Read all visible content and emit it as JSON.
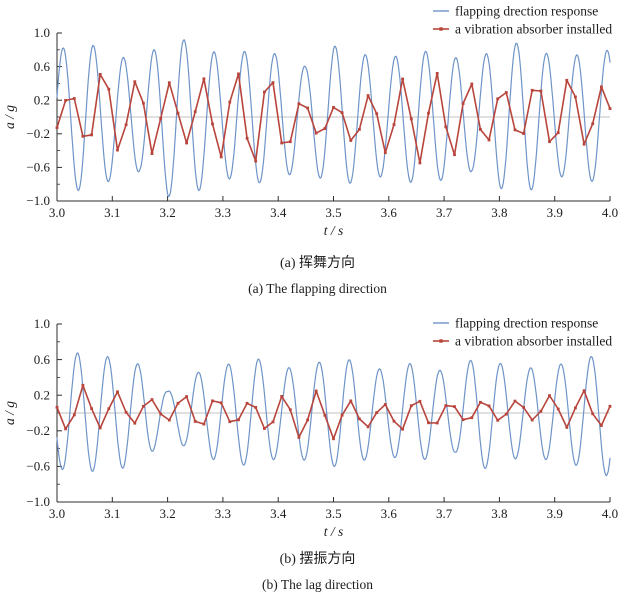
{
  "figure_captions": {
    "a_zh": "(a) 挥舞方向",
    "a_en": "(a) The flapping direction",
    "b_zh": "(b) 摆振方向",
    "b_en": "(b) The lag direction"
  },
  "colors": {
    "response_line": "#6E94C8",
    "absorber_line": "#B8453C",
    "axis": "#2E2E2E",
    "zero_line": "#AEAEAE",
    "text": "#1C1C1C"
  },
  "chart_data": [
    {
      "type": "line",
      "panel": "a",
      "title_zh": "(a) 挥舞方向",
      "title_en": "(a) The flapping direction",
      "xlabel": "t / s",
      "ylabel": "a / g",
      "xlim": [
        3.0,
        4.0
      ],
      "ylim": [
        -1.0,
        1.0
      ],
      "grid": false,
      "zero_line": true,
      "legend_position": "top-right",
      "x_ticks": [
        {
          "value": 3.0,
          "label": "3.0"
        },
        {
          "value": 3.1,
          "label": "3.1"
        },
        {
          "value": 3.2,
          "label": "3.2"
        },
        {
          "value": 3.3,
          "label": "3.3"
        },
        {
          "value": 3.4,
          "label": "3.4"
        },
        {
          "value": 3.5,
          "label": "3.5"
        },
        {
          "value": 3.6,
          "label": "3.6"
        },
        {
          "value": 3.7,
          "label": "3.7"
        },
        {
          "value": 3.8,
          "label": "3.8"
        },
        {
          "value": 3.9,
          "label": "3.9"
        },
        {
          "value": 4.0,
          "label": "4.0"
        }
      ],
      "y_ticks": [
        {
          "value": 1.0,
          "label": "1.0"
        },
        {
          "value": 0.6,
          "label": "0.6"
        },
        {
          "value": 0.2,
          "label": "0.2"
        },
        {
          "value": -0.2,
          "label": "−0.2"
        },
        {
          "value": -0.6,
          "label": "−0.6"
        },
        {
          "value": -1.0,
          "label": "−1.0"
        }
      ],
      "y_minor_tick_step": 0.2,
      "series": [
        {
          "name": "flapping drection response",
          "color": "#6E94C8",
          "marker": "none",
          "line_width": 1.2,
          "waveform": {
            "freq_hz": 18.3,
            "phase_rad": 0.3,
            "sample_rate_hz": 600,
            "amp_envelope": [
              [
                3.0,
                0.8
              ],
              [
                3.05,
                0.9
              ],
              [
                3.1,
                0.75
              ],
              [
                3.15,
                0.65
              ],
              [
                3.2,
                0.95
              ],
              [
                3.25,
                0.9
              ],
              [
                3.3,
                0.72
              ],
              [
                3.35,
                0.8
              ],
              [
                3.4,
                0.75
              ],
              [
                3.45,
                0.6
              ],
              [
                3.5,
                0.85
              ],
              [
                3.55,
                0.75
              ],
              [
                3.6,
                0.7
              ],
              [
                3.65,
                0.8
              ],
              [
                3.7,
                0.75
              ],
              [
                3.75,
                0.65
              ],
              [
                3.8,
                0.85
              ],
              [
                3.85,
                0.9
              ],
              [
                3.9,
                0.7
              ],
              [
                3.95,
                0.75
              ],
              [
                4.0,
                0.8
              ]
            ]
          }
        },
        {
          "name": "a vibration absorber installed",
          "color": "#B8453C",
          "marker": "square",
          "marker_size": 2.8,
          "line_width": 1.6,
          "waveform": {
            "freq_hz": 16.6,
            "phase_rad": -0.85,
            "sample_rate_hz": 64,
            "amp_envelope": [
              [
                3.0,
                0.2
              ],
              [
                3.04,
                0.3
              ],
              [
                3.09,
                0.62
              ],
              [
                3.13,
                0.35
              ],
              [
                3.17,
                0.5
              ],
              [
                3.22,
                0.3
              ],
              [
                3.27,
                0.45
              ],
              [
                3.32,
                0.55
              ],
              [
                3.38,
                0.6
              ],
              [
                3.43,
                0.3
              ],
              [
                3.48,
                0.15
              ],
              [
                3.53,
                0.25
              ],
              [
                3.58,
                0.35
              ],
              [
                3.63,
                0.5
              ],
              [
                3.68,
                0.55
              ],
              [
                3.73,
                0.45
              ],
              [
                3.78,
                0.35
              ],
              [
                3.83,
                0.3
              ],
              [
                3.88,
                0.42
              ],
              [
                3.93,
                0.45
              ],
              [
                4.0,
                0.3
              ]
            ],
            "drift": {
              "amp": 0.05,
              "freq_hz": 1.3,
              "phase_rad": 0.5
            }
          }
        }
      ]
    },
    {
      "type": "line",
      "panel": "b",
      "title_zh": "(b) 摆振方向",
      "title_en": "(b) The lag direction",
      "xlabel": "t / s",
      "ylabel": "a / g",
      "xlim": [
        3.0,
        4.0
      ],
      "ylim": [
        -1.0,
        1.0
      ],
      "grid": false,
      "zero_line": true,
      "legend_position": "top-right",
      "x_ticks": [
        {
          "value": 3.0,
          "label": "3.0"
        },
        {
          "value": 3.1,
          "label": "3.1"
        },
        {
          "value": 3.2,
          "label": "3.2"
        },
        {
          "value": 3.3,
          "label": "3.3"
        },
        {
          "value": 3.4,
          "label": "3.4"
        },
        {
          "value": 3.5,
          "label": "3.5"
        },
        {
          "value": 3.6,
          "label": "3.6"
        },
        {
          "value": 3.7,
          "label": "3.7"
        },
        {
          "value": 3.8,
          "label": "3.8"
        },
        {
          "value": 3.9,
          "label": "3.9"
        },
        {
          "value": 4.0,
          "label": "4.0"
        }
      ],
      "y_ticks": [
        {
          "value": 1.0,
          "label": "1.0"
        },
        {
          "value": 0.6,
          "label": "0.6"
        },
        {
          "value": 0.2,
          "label": "0.2"
        },
        {
          "value": -0.2,
          "label": "−0.2"
        },
        {
          "value": -0.6,
          "label": "−0.6"
        },
        {
          "value": -1.0,
          "label": "−1.0"
        }
      ],
      "y_minor_tick_step": 0.2,
      "series": [
        {
          "name": "flapping drection response",
          "color": "#6E94C8",
          "marker": "none",
          "line_width": 1.2,
          "waveform": {
            "freq_hz": 18.3,
            "phase_rad": 3.61,
            "sample_rate_hz": 600,
            "amp_envelope": [
              [
                3.0,
                0.62
              ],
              [
                3.04,
                0.68
              ],
              [
                3.08,
                0.64
              ],
              [
                3.12,
                0.62
              ],
              [
                3.16,
                0.52
              ],
              [
                3.2,
                0.24
              ],
              [
                3.24,
                0.42
              ],
              [
                3.28,
                0.52
              ],
              [
                3.32,
                0.56
              ],
              [
                3.36,
                0.62
              ],
              [
                3.4,
                0.5
              ],
              [
                3.44,
                0.52
              ],
              [
                3.48,
                0.58
              ],
              [
                3.52,
                0.62
              ],
              [
                3.56,
                0.52
              ],
              [
                3.6,
                0.48
              ],
              [
                3.64,
                0.56
              ],
              [
                3.68,
                0.5
              ],
              [
                3.72,
                0.44
              ],
              [
                3.76,
                0.66
              ],
              [
                3.8,
                0.56
              ],
              [
                3.84,
                0.5
              ],
              [
                3.88,
                0.52
              ],
              [
                3.92,
                0.56
              ],
              [
                3.96,
                0.62
              ],
              [
                4.0,
                0.72
              ]
            ]
          }
        },
        {
          "name": "a vibration absorber installed",
          "color": "#B8453C",
          "marker": "square",
          "marker_size": 2.8,
          "line_width": 1.6,
          "waveform": {
            "freq_hz": 16.6,
            "phase_rad": 2.84,
            "sample_rate_hz": 64,
            "amp_envelope": [
              [
                3.0,
                0.15
              ],
              [
                3.04,
                0.3
              ],
              [
                3.08,
                0.2
              ],
              [
                3.12,
                0.2
              ],
              [
                3.16,
                0.12
              ],
              [
                3.2,
                0.12
              ],
              [
                3.24,
                0.2
              ],
              [
                3.28,
                0.18
              ],
              [
                3.32,
                0.12
              ],
              [
                3.36,
                0.15
              ],
              [
                3.4,
                0.22
              ],
              [
                3.44,
                0.25
              ],
              [
                3.48,
                0.3
              ],
              [
                3.52,
                0.2
              ],
              [
                3.56,
                0.12
              ],
              [
                3.6,
                0.14
              ],
              [
                3.64,
                0.2
              ],
              [
                3.68,
                0.15
              ],
              [
                3.72,
                0.1
              ],
              [
                3.76,
                0.12
              ],
              [
                3.8,
                0.12
              ],
              [
                3.84,
                0.1
              ],
              [
                3.88,
                0.14
              ],
              [
                3.92,
                0.2
              ],
              [
                3.96,
                0.22
              ],
              [
                4.0,
                0.15
              ]
            ],
            "drift": {
              "amp": 0.04,
              "freq_hz": 1.3,
              "phase_rad": 0.5
            }
          }
        }
      ]
    }
  ]
}
